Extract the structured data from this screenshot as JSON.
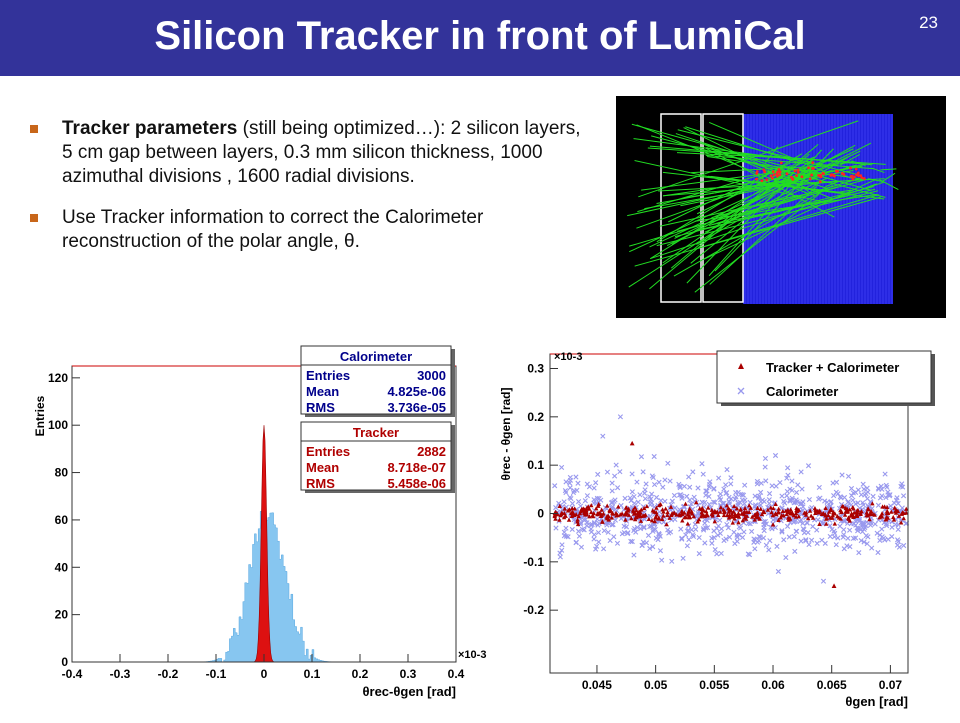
{
  "slide": {
    "title": "Silicon Tracker in front of LumiCal",
    "page_number": "23"
  },
  "bullets": [
    {
      "bold": "Tracker parameters",
      "text": " (still being optimized…): 2 silicon layers, 5 cm gap between layers, 0.3 mm silicon thickness, 1000 azimuthal divisions , 1600 radial divisions."
    },
    {
      "bold": "",
      "text": "Use Tracker information to correct the Calorimeter reconstruction of the polar angle, θ."
    }
  ],
  "colors": {
    "header": "#33339a",
    "bullet_marker": "#c8661a",
    "calorimeter_fill": "#87c6f0",
    "tracker_fill": "#dd1111",
    "detector_blue": "#2222dd",
    "track_green": "#22dd22",
    "scatter_calorimeter": "#9999ee",
    "scatter_tracker": "#aa0000"
  },
  "chart_data": [
    {
      "type": "histogram",
      "title": "",
      "xlabel": "θrec-θgen [rad]",
      "ylabel": "Entries",
      "x_multiplier": "×10-3",
      "xlim": [
        -0.4,
        0.4
      ],
      "ylim": [
        0,
        125
      ],
      "x_ticks": [
        "-0.4",
        "-0.3",
        "-0.2",
        "-0.1",
        "0",
        "0.1",
        "0.2",
        "0.3",
        "0.4"
      ],
      "y_ticks": [
        "0",
        "20",
        "40",
        "60",
        "80",
        "100",
        "120"
      ],
      "series": [
        {
          "name": "Calorimeter",
          "stats": {
            "Entries": "3000",
            "Mean": "4.825e-06",
            "RMS": "3.736e-05"
          }
        },
        {
          "name": "Tracker",
          "stats": {
            "Entries": "2882",
            "Mean": "8.718e-07",
            "RMS": "5.458e-06"
          }
        }
      ]
    },
    {
      "type": "scatter",
      "title": "",
      "xlabel": "θgen [rad]",
      "ylabel": "θrec - θgen [rad]",
      "y_multiplier": "×10-3",
      "xlim": [
        0.041,
        0.0715
      ],
      "ylim": [
        -0.33,
        0.33
      ],
      "x_ticks": [
        "0.045",
        "0.05",
        "0.055",
        "0.06",
        "0.065",
        "0.07"
      ],
      "y_ticks": [
        "-0.2",
        "-0.1",
        "0",
        "0.1",
        "0.2",
        "0.3"
      ],
      "series": [
        {
          "name": "Tracker + Calorimeter",
          "marker": "triangle",
          "outliers": [
            [
              0.048,
              0.145
            ],
            [
              0.0652,
              -0.15
            ]
          ]
        },
        {
          "name": "Calorimeter",
          "marker": "x",
          "outliers": [
            [
              0.047,
              0.2
            ],
            [
              0.0455,
              0.16
            ],
            [
              0.0643,
              -0.14
            ]
          ]
        }
      ]
    }
  ]
}
